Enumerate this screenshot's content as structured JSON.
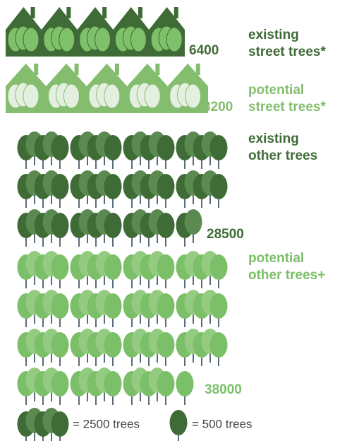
{
  "chart_data": {
    "type": "pictograph",
    "categories": [
      [
        "existing",
        "street trees*"
      ],
      [
        "potential",
        "street trees*"
      ],
      [
        "existing",
        "other trees"
      ],
      [
        "potential",
        "other trees+"
      ]
    ],
    "values": [
      6400,
      8200,
      28500,
      38000
    ],
    "icons": [
      "house",
      "house",
      "tree",
      "tree"
    ],
    "colors": [
      "#3e6b36",
      "#84bd6e",
      "#3e6b36",
      "#7cbf69"
    ],
    "shades": [
      "#7fc06a",
      "#e4f0df",
      "#5b8a51",
      "#93cc80"
    ],
    "legend": [
      {
        "value": 2500,
        "label": "= 2500 trees"
      },
      {
        "value": 500,
        "label": "= 500 trees"
      }
    ]
  }
}
